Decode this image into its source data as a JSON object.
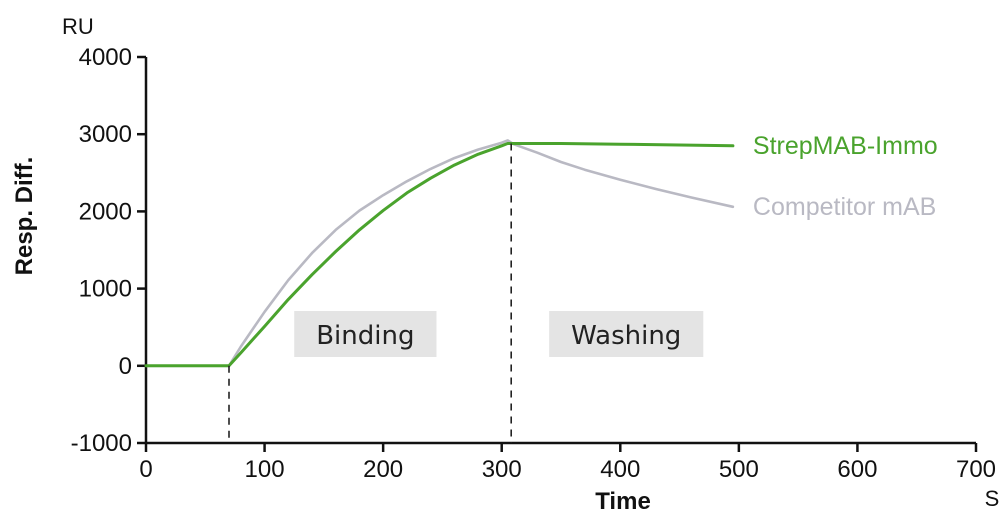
{
  "chart_data": {
    "type": "line",
    "x_unit_label": "S",
    "y_unit_label": "RU",
    "xlabel": "Time",
    "ylabel": "Resp. Diff.",
    "xlim": [
      0,
      700
    ],
    "ylim": [
      -1000,
      4000
    ],
    "x_ticks": [
      0,
      100,
      200,
      300,
      400,
      500,
      600,
      700
    ],
    "y_ticks": [
      -1000,
      0,
      1000,
      2000,
      3000,
      4000
    ],
    "x_tick_labels": [
      "0",
      "100",
      "200",
      "300",
      "400",
      "500",
      "600",
      "700"
    ],
    "y_tick_labels": [
      "-1000",
      "0",
      "1000",
      "2000",
      "3000",
      "4000"
    ],
    "grid": false,
    "legend_placement": "right",
    "phase_markers": [
      70,
      308
    ],
    "phases": [
      {
        "label": "Binding",
        "start": 125,
        "end": 245
      },
      {
        "label": "Washing",
        "start": 340,
        "end": 470
      }
    ],
    "series": [
      {
        "name": "Competitor mAB",
        "color": "#b9b9c3",
        "x": [
          0,
          68,
          70,
          80,
          100,
          120,
          140,
          160,
          180,
          200,
          220,
          240,
          260,
          280,
          300,
          305,
          310,
          330,
          350,
          370,
          400,
          430,
          460,
          495
        ],
        "y": [
          0,
          0,
          0,
          250,
          700,
          1110,
          1460,
          1760,
          2010,
          2210,
          2390,
          2550,
          2690,
          2800,
          2890,
          2920,
          2870,
          2760,
          2640,
          2540,
          2410,
          2290,
          2180,
          2060
        ]
      },
      {
        "name": "StrepMAB-Immo",
        "color": "#4aa32d",
        "x": [
          0,
          68,
          70,
          80,
          100,
          120,
          140,
          160,
          180,
          200,
          220,
          240,
          260,
          280,
          300,
          305,
          310,
          350,
          400,
          450,
          495
        ],
        "y": [
          0,
          0,
          0,
          170,
          510,
          860,
          1180,
          1480,
          1760,
          2010,
          2240,
          2430,
          2600,
          2740,
          2850,
          2880,
          2880,
          2880,
          2870,
          2860,
          2850
        ]
      }
    ]
  }
}
